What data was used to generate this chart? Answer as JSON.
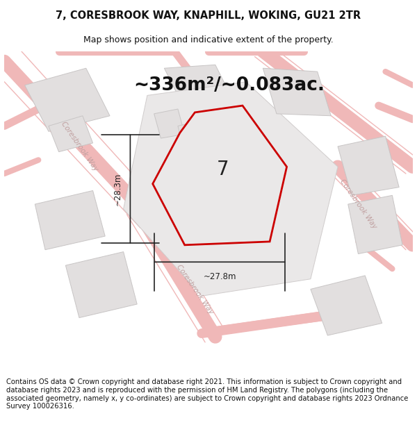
{
  "title": "7, CORESBROOK WAY, KNAPHILL, WOKING, GU21 2TR",
  "subtitle": "Map shows position and indicative extent of the property.",
  "area_text": "~336m²/~0.083ac.",
  "number_label": "7",
  "dim_width": "~27.8m",
  "dim_height": "~28.3m",
  "footer": "Contains OS data © Crown copyright and database right 2021. This information is subject to Crown copyright and database rights 2023 and is reproduced with the permission of HM Land Registry. The polygons (including the associated geometry, namely x, y co-ordinates) are subject to Crown copyright and database rights 2023 Ordnance Survey 100026316.",
  "bg_color": "#ffffff",
  "map_bg": "#f7f5f5",
  "road_color": "#f0b8b8",
  "road_lw": 1.2,
  "road_label_color": "#c0a0a0",
  "building_fill": "#e2dfdf",
  "building_edge": "#c8c5c5",
  "block_fill": "#eae8e8",
  "block_edge": "#d0cccc",
  "plot_fill": "#eae8e8",
  "plot_edge": "#cc0000",
  "plot_edge_width": 2.0,
  "dim_color": "#222222",
  "title_fontsize": 10.5,
  "subtitle_fontsize": 9.0,
  "area_fontsize": 19,
  "number_fontsize": 20,
  "footer_fontsize": 7.2,
  "road_label_fontsize": 7.5,
  "map_xlim": [
    0,
    600
  ],
  "map_ylim": [
    0,
    480
  ]
}
